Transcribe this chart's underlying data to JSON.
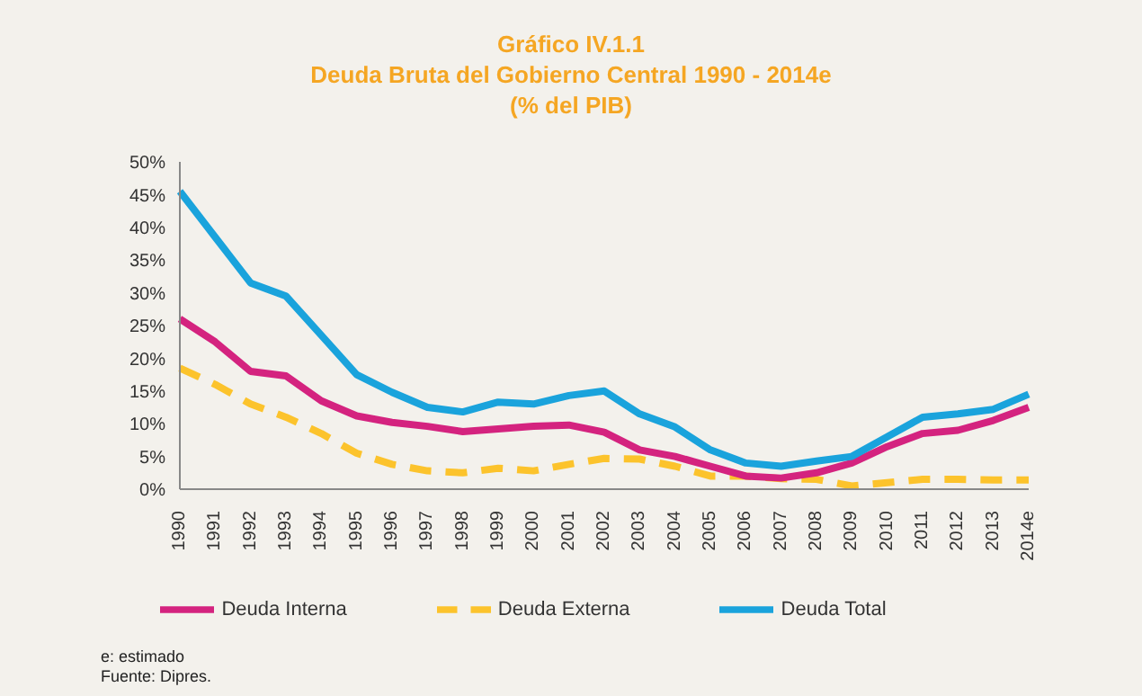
{
  "chart_data": {
    "type": "line",
    "title": "Gráfico IV.1.1",
    "subtitle": "Deuda Bruta del Gobierno Central 1990 - 2014e\n(% del PIB)",
    "categories": [
      "1990",
      "1991",
      "1992",
      "1993",
      "1994",
      "1995",
      "1996",
      "1997",
      "1998",
      "1999",
      "2000",
      "2001",
      "2002",
      "2003",
      "2004",
      "2005",
      "2006",
      "2007",
      "2008",
      "2009",
      "2010",
      "2011",
      "2012",
      "2013",
      "2014e"
    ],
    "series": [
      {
        "name": "Deuda Externa",
        "color": "#fcc32c",
        "line_style": "dashed",
        "values": [
          18.5,
          16,
          13,
          11,
          8.5,
          5.5,
          3.8,
          2.8,
          2.5,
          3.2,
          2.8,
          3.8,
          4.7,
          4.6,
          3.5,
          2,
          2,
          1.6,
          1.5,
          0.5,
          1,
          1.5,
          1.5,
          1.4,
          1.4
        ]
      },
      {
        "name": "Deuda  Interna",
        "color": "#d4237f",
        "line_style": "solid",
        "values": [
          26,
          22.5,
          18,
          17.3,
          13.5,
          11.2,
          10.2,
          9.6,
          8.8,
          9.2,
          9.6,
          9.8,
          8.7,
          6,
          5,
          3.5,
          2,
          1.7,
          2.5,
          4,
          6.5,
          8.5,
          9,
          10.5,
          12.5
        ]
      },
      {
        "name": "Deuda Total",
        "color": "#1aa3dc",
        "line_style": "solid",
        "values": [
          45.5,
          38.5,
          31.5,
          29.5,
          23.5,
          17.5,
          14.8,
          12.5,
          11.8,
          13.3,
          13,
          14.3,
          15,
          11.5,
          9.5,
          6,
          4,
          3.5,
          4.3,
          5,
          8,
          11,
          11.5,
          12.2,
          14.5
        ]
      }
    ],
    "ylim": [
      0,
      50
    ],
    "yticks": [
      {
        "value": 0,
        "label": "0%"
      },
      {
        "value": 5,
        "label": "5%"
      },
      {
        "value": 10,
        "label": "10%"
      },
      {
        "value": 15,
        "label": "15%"
      },
      {
        "value": 20,
        "label": "20%"
      },
      {
        "value": 25,
        "label": "25%"
      },
      {
        "value": 30,
        "label": "30%"
      },
      {
        "value": 35,
        "label": "35%"
      },
      {
        "value": 40,
        "label": "40%"
      },
      {
        "value": 45,
        "label": "45%"
      },
      {
        "value": 50,
        "label": "50%"
      }
    ],
    "grid": false,
    "legend": "bottom",
    "marker": "none",
    "annotations": [
      "e: estimado",
      "Fuente: Dipres."
    ]
  }
}
